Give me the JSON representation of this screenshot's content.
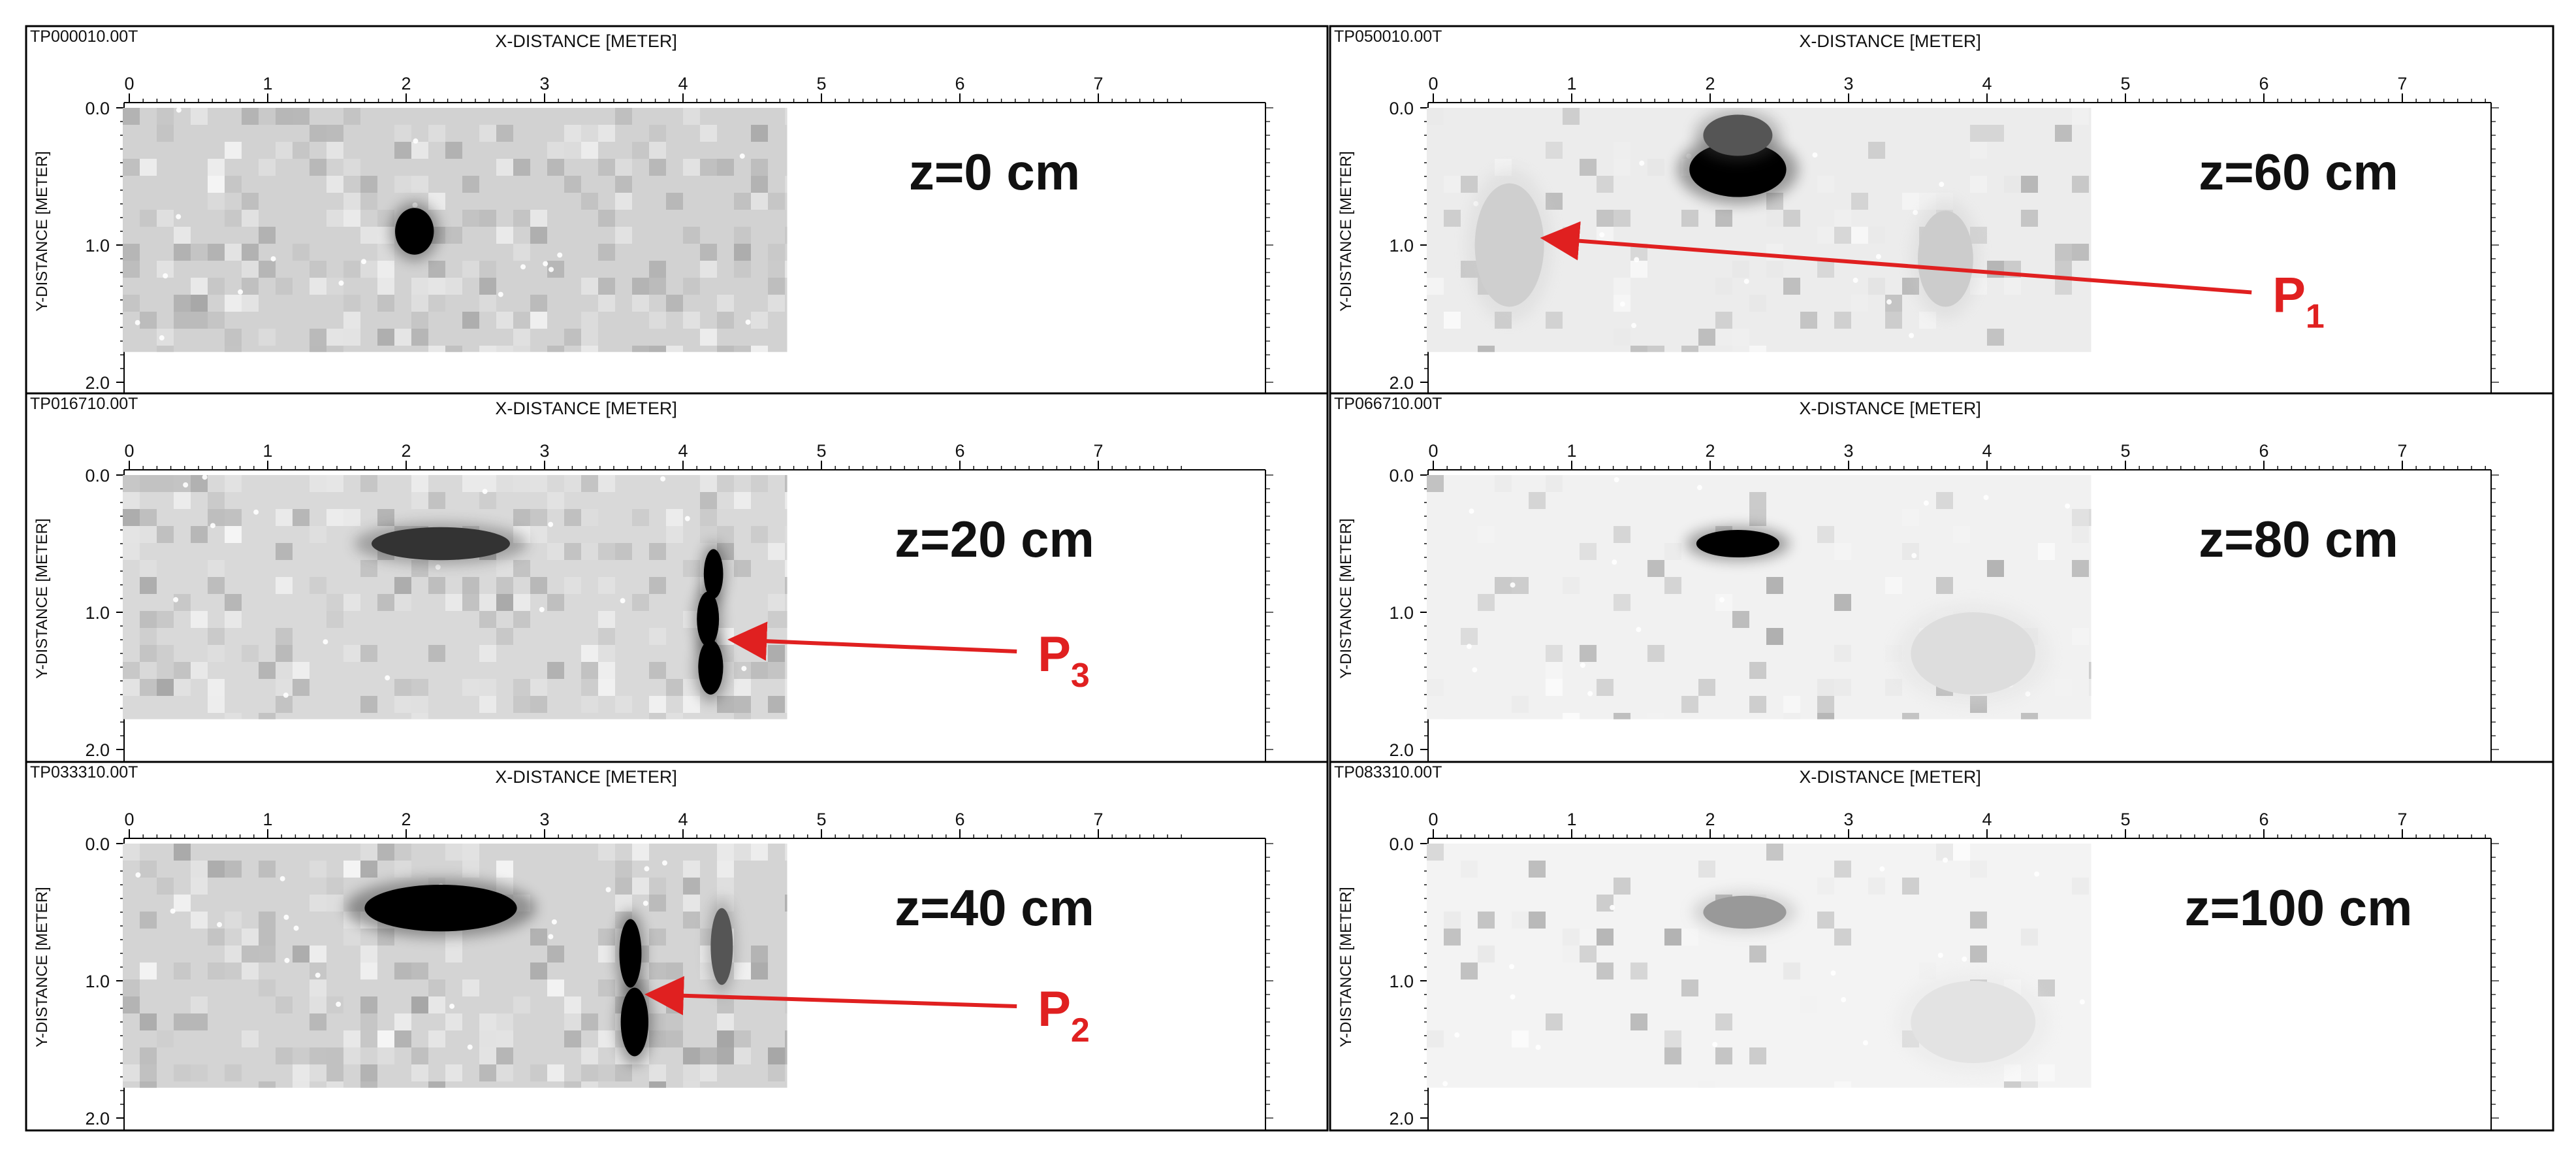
{
  "panels": [
    {
      "file": "TP000010.00T",
      "x_axis_title": "X-DISTANCE [METER]",
      "y_axis_title": "Y-DISTANCE [METER]",
      "x_ticks": [
        "0",
        "1",
        "2",
        "3",
        "4",
        "5",
        "6",
        "7"
      ],
      "y_ticks": [
        "0.0",
        "1.0",
        "2.0"
      ],
      "depth_label": "z=0 cm",
      "base_gray": "#d2d2d2",
      "noise_level": 0.35,
      "anomalies": [
        {
          "x": 2.06,
          "y": 0.9,
          "rx": 0.14,
          "ry": 0.17,
          "shade": "#000000"
        }
      ]
    },
    {
      "file": "TP016710.00T",
      "x_axis_title": "X-DISTANCE [METER]",
      "y_axis_title": "Y-DISTANCE [METER]",
      "x_ticks": [
        "0",
        "1",
        "2",
        "3",
        "4",
        "5",
        "6",
        "7"
      ],
      "y_ticks": [
        "0.0",
        "1.0",
        "2.0"
      ],
      "depth_label": "z=20 cm",
      "base_gray": "#d9d9d9",
      "noise_level": 0.3,
      "anomalies": [
        {
          "x": 2.25,
          "y": 0.5,
          "rx": 0.5,
          "ry": 0.12,
          "shade": "#333333"
        },
        {
          "x": 4.22,
          "y": 0.72,
          "rx": 0.07,
          "ry": 0.18,
          "shade": "#000000"
        },
        {
          "x": 4.18,
          "y": 1.05,
          "rx": 0.08,
          "ry": 0.2,
          "shade": "#000000"
        },
        {
          "x": 4.2,
          "y": 1.4,
          "rx": 0.09,
          "ry": 0.2,
          "shade": "#000000"
        }
      ],
      "callout": {
        "label": "P",
        "subscript": "3",
        "target_x": 4.35,
        "target_y": 1.2
      }
    },
    {
      "file": "TP033310.00T",
      "x_axis_title": "X-DISTANCE [METER]",
      "y_axis_title": "Y-DISTANCE [METER]",
      "x_ticks": [
        "0",
        "1",
        "2",
        "3",
        "4",
        "5",
        "6",
        "7"
      ],
      "y_ticks": [
        "0.0",
        "1.0",
        "2.0"
      ],
      "depth_label": "z=40 cm",
      "base_gray": "#d4d4d4",
      "noise_level": 0.33,
      "anomalies": [
        {
          "x": 2.25,
          "y": 0.47,
          "rx": 0.55,
          "ry": 0.17,
          "shade": "#000000"
        },
        {
          "x": 3.62,
          "y": 0.8,
          "rx": 0.08,
          "ry": 0.25,
          "shade": "#000000"
        },
        {
          "x": 3.65,
          "y": 1.3,
          "rx": 0.1,
          "ry": 0.25,
          "shade": "#000000"
        },
        {
          "x": 4.28,
          "y": 0.75,
          "rx": 0.08,
          "ry": 0.28,
          "shade": "#555555"
        }
      ],
      "callout": {
        "label": "P",
        "subscript": "2",
        "target_x": 3.75,
        "target_y": 1.1
      }
    },
    {
      "file": "TP050010.00T",
      "x_axis_title": "X-DISTANCE [METER]",
      "y_axis_title": "Y-DISTANCE [METER]",
      "x_ticks": [
        "0",
        "1",
        "2",
        "3",
        "4",
        "5",
        "6",
        "7"
      ],
      "y_ticks": [
        "0.0",
        "1.0",
        "2.0"
      ],
      "depth_label": "z=60 cm",
      "base_gray": "#ececec",
      "noise_level": 0.18,
      "anomalies": [
        {
          "x": 2.2,
          "y": 0.45,
          "rx": 0.35,
          "ry": 0.2,
          "shade": "#000000"
        },
        {
          "x": 2.2,
          "y": 0.2,
          "rx": 0.25,
          "ry": 0.15,
          "shade": "#555555"
        },
        {
          "x": 0.55,
          "y": 1.0,
          "rx": 0.25,
          "ry": 0.45,
          "shade": "#cfcfcf"
        },
        {
          "x": 3.7,
          "y": 1.1,
          "rx": 0.2,
          "ry": 0.35,
          "shade": "#cccccc"
        }
      ],
      "callout": {
        "label": "P",
        "subscript": "1",
        "target_x": 0.8,
        "target_y": 0.95
      }
    },
    {
      "file": "TP066710.00T",
      "x_axis_title": "X-DISTANCE [METER]",
      "y_axis_title": "Y-DISTANCE [METER]",
      "x_ticks": [
        "0",
        "1",
        "2",
        "3",
        "4",
        "5",
        "6",
        "7"
      ],
      "y_ticks": [
        "0.0",
        "1.0",
        "2.0"
      ],
      "depth_label": "z=80 cm",
      "base_gray": "#f1f1f1",
      "noise_level": 0.12,
      "anomalies": [
        {
          "x": 2.2,
          "y": 0.5,
          "rx": 0.3,
          "ry": 0.1,
          "shade": "#000000"
        },
        {
          "x": 3.9,
          "y": 1.3,
          "rx": 0.45,
          "ry": 0.3,
          "shade": "#dddddd"
        }
      ]
    },
    {
      "file": "TP083310.00T",
      "x_axis_title": "X-DISTANCE [METER]",
      "y_axis_title": "Y-DISTANCE [METER]",
      "x_ticks": [
        "0",
        "1",
        "2",
        "3",
        "4",
        "5",
        "6",
        "7"
      ],
      "y_ticks": [
        "0.0",
        "1.0",
        "2.0"
      ],
      "depth_label": "z=100 cm",
      "base_gray": "#f3f3f3",
      "noise_level": 0.1,
      "anomalies": [
        {
          "x": 2.25,
          "y": 0.5,
          "rx": 0.3,
          "ry": 0.12,
          "shade": "#999999"
        },
        {
          "x": 3.9,
          "y": 1.3,
          "rx": 0.45,
          "ry": 0.3,
          "shade": "#e3e3e3"
        }
      ]
    }
  ],
  "colors": {
    "callout_red": "#e02020",
    "frame": "#000000"
  }
}
